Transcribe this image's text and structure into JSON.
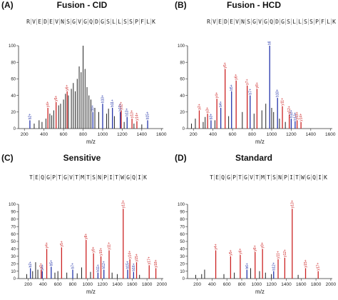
{
  "panels": [
    {
      "letter": "(A)",
      "title": "Fusion - CID",
      "sequence": [
        "R",
        "V",
        "E",
        "D",
        "E",
        "V",
        "N",
        "S",
        "G",
        "V",
        "G",
        "Q",
        "D",
        "G",
        "S",
        "L",
        "L",
        "S",
        "S",
        "P",
        "F",
        "L",
        "K"
      ],
      "chart_data": {
        "type": "bar",
        "xlabel": "m/z",
        "ylabel": "",
        "xlim": [
          140,
          1620
        ],
        "ylim": [
          0,
          100
        ],
        "xticks": [
          200,
          400,
          600,
          800,
          1000,
          1200,
          1400,
          1600
        ],
        "yticks": [
          0,
          20,
          40,
          60,
          80,
          100
        ],
        "y_ions": [
          {
            "label": "y4+",
            "mz": 440,
            "intensity": 25
          },
          {
            "label": "y5+",
            "mz": 524,
            "intensity": 32
          },
          {
            "label": "y6+",
            "mz": 637,
            "intensity": 45
          },
          {
            "label": "y12+",
            "mz": 1190,
            "intensity": 22
          },
          {
            "label": "y13+",
            "mz": 1300,
            "intensity": 12
          },
          {
            "label": "y14+",
            "mz": 1350,
            "intensity": 9
          }
        ],
        "b_ions": [
          {
            "label": "b2+",
            "mz": 256,
            "intensity": 10
          },
          {
            "label": "b9+",
            "mz": 900,
            "intensity": 20
          },
          {
            "label": "b10+",
            "mz": 1000,
            "intensity": 30
          },
          {
            "label": "b11+",
            "mz": 1100,
            "intensity": 25
          },
          {
            "label": "b12+",
            "mz": 1180,
            "intensity": 20
          },
          {
            "label": "b13+",
            "mz": 1250,
            "intensity": 14
          },
          {
            "label": "b15+",
            "mz": 1460,
            "intensity": 10
          }
        ],
        "other_peaks": [
          {
            "mz": 300,
            "intensity": 6
          },
          {
            "mz": 350,
            "intensity": 10
          },
          {
            "mz": 380,
            "intensity": 8
          },
          {
            "mz": 420,
            "intensity": 12
          },
          {
            "mz": 460,
            "intensity": 18
          },
          {
            "mz": 480,
            "intensity": 16
          },
          {
            "mz": 500,
            "intensity": 22
          },
          {
            "mz": 550,
            "intensity": 28
          },
          {
            "mz": 570,
            "intensity": 30
          },
          {
            "mz": 600,
            "intensity": 35
          },
          {
            "mz": 620,
            "intensity": 42
          },
          {
            "mz": 650,
            "intensity": 40
          },
          {
            "mz": 680,
            "intensity": 48
          },
          {
            "mz": 700,
            "intensity": 55
          },
          {
            "mz": 720,
            "intensity": 45
          },
          {
            "mz": 740,
            "intensity": 60
          },
          {
            "mz": 760,
            "intensity": 75
          },
          {
            "mz": 780,
            "intensity": 68
          },
          {
            "mz": 800,
            "intensity": 100
          },
          {
            "mz": 820,
            "intensity": 72
          },
          {
            "mz": 840,
            "intensity": 50
          },
          {
            "mz": 860,
            "intensity": 40
          },
          {
            "mz": 880,
            "intensity": 35
          },
          {
            "mz": 920,
            "intensity": 25
          },
          {
            "mz": 960,
            "intensity": 20
          },
          {
            "mz": 1040,
            "intensity": 18
          },
          {
            "mz": 1060,
            "intensity": 24
          },
          {
            "mz": 1120,
            "intensity": 15
          },
          {
            "mz": 1220,
            "intensity": 8
          },
          {
            "mz": 1320,
            "intensity": 6
          },
          {
            "mz": 1400,
            "intensity": 5
          }
        ]
      }
    },
    {
      "letter": "(B)",
      "title": "Fusion - HCD",
      "sequence": [
        "R",
        "V",
        "E",
        "D",
        "E",
        "V",
        "N",
        "S",
        "G",
        "V",
        "G",
        "Q",
        "D",
        "G",
        "S",
        "L",
        "L",
        "S",
        "S",
        "P",
        "F",
        "L",
        "K"
      ],
      "chart_data": {
        "type": "bar",
        "xlabel": "m/z",
        "ylabel": "",
        "xlim": [
          140,
          1620
        ],
        "ylim": [
          0,
          100
        ],
        "xticks": [
          200,
          400,
          600,
          800,
          1000,
          1200,
          1400,
          1600
        ],
        "yticks": [
          0,
          20,
          40,
          60,
          80,
          100
        ],
        "y_ions": [
          {
            "label": "y2+",
            "mz": 260,
            "intensity": 22
          },
          {
            "label": "y3+",
            "mz": 345,
            "intensity": 18
          },
          {
            "label": "y4+",
            "mz": 440,
            "intensity": 36
          },
          {
            "label": "y5+",
            "mz": 524,
            "intensity": 72
          },
          {
            "label": "y6+",
            "mz": 637,
            "intensity": 58
          },
          {
            "label": "y7+",
            "mz": 750,
            "intensity": 52
          },
          {
            "label": "y8+",
            "mz": 850,
            "intensity": 48
          },
          {
            "label": "y11+",
            "mz": 1110,
            "intensity": 27
          },
          {
            "label": "y12+",
            "mz": 1180,
            "intensity": 17
          },
          {
            "label": "y13+",
            "mz": 1260,
            "intensity": 10
          },
          {
            "label": "y14+",
            "mz": 1300,
            "intensity": 8
          }
        ],
        "b_ions": [
          {
            "label": "b3+",
            "mz": 380,
            "intensity": 10
          },
          {
            "label": "b4+",
            "mz": 480,
            "intensity": 25
          },
          {
            "label": "b5+",
            "mz": 590,
            "intensity": 45
          },
          {
            "label": "b7+",
            "mz": 780,
            "intensity": 40
          },
          {
            "label": "b9+",
            "mz": 980,
            "intensity": 100
          },
          {
            "label": "b10+",
            "mz": 1060,
            "intensity": 37
          },
          {
            "label": "b12+",
            "mz": 1200,
            "intensity": 12
          },
          {
            "label": "b13+",
            "mz": 1240,
            "intensity": 9
          }
        ],
        "other_peaks": [
          {
            "mz": 180,
            "intensity": 6
          },
          {
            "mz": 220,
            "intensity": 12
          },
          {
            "mz": 300,
            "intensity": 8
          },
          {
            "mz": 320,
            "intensity": 14
          },
          {
            "mz": 420,
            "intensity": 10
          },
          {
            "mz": 560,
            "intensity": 15
          },
          {
            "mz": 700,
            "intensity": 20
          },
          {
            "mz": 820,
            "intensity": 18
          },
          {
            "mz": 900,
            "intensity": 22
          },
          {
            "mz": 940,
            "intensity": 30
          },
          {
            "mz": 1000,
            "intensity": 25
          },
          {
            "mz": 1020,
            "intensity": 20
          },
          {
            "mz": 1080,
            "intensity": 12
          },
          {
            "mz": 1140,
            "intensity": 8
          }
        ]
      }
    },
    {
      "letter": "(C)",
      "title": "Sensitive",
      "sequence": [
        "T",
        "E",
        "Q",
        "G",
        "P",
        "T",
        "G",
        "V",
        "T",
        "M",
        "T",
        "S",
        "N",
        "P",
        "I",
        "T",
        "W",
        "G",
        "Q",
        "I",
        "K"
      ],
      "chart_data": {
        "type": "bar",
        "xlabel": "m/z",
        "ylabel": "",
        "xlim": [
          70,
          2020
        ],
        "ylim": [
          0,
          100
        ],
        "xticks": [
          200,
          400,
          600,
          800,
          1000,
          1200,
          1400,
          1600,
          1800,
          2000
        ],
        "yticks": [
          0,
          10,
          20,
          30,
          40,
          50,
          60,
          70,
          80,
          90,
          100
        ],
        "y_ions": [
          {
            "label": "y3+",
            "mz": 375,
            "intensity": 12
          },
          {
            "label": "y4+",
            "mz": 450,
            "intensity": 40
          },
          {
            "label": "y5+",
            "mz": 650,
            "intensity": 42
          },
          {
            "label": "y8+",
            "mz": 980,
            "intensity": 52
          },
          {
            "label": "y9+",
            "mz": 1080,
            "intensity": 34
          },
          {
            "label": "y10+",
            "mz": 1180,
            "intensity": 30
          },
          {
            "label": "y11+",
            "mz": 1290,
            "intensity": 38
          },
          {
            "label": "y13+",
            "mz": 1480,
            "intensity": 94
          },
          {
            "label": "y14+",
            "mz": 1570,
            "intensity": 26
          },
          {
            "label": "y15+",
            "mz": 1660,
            "intensity": 22
          },
          {
            "label": "y17+",
            "mz": 1830,
            "intensity": 18
          },
          {
            "label": "y18+",
            "mz": 1920,
            "intensity": 14
          }
        ],
        "b_ions": [
          {
            "label": "b2+",
            "mz": 230,
            "intensity": 14
          },
          {
            "label": "b4+",
            "mz": 390,
            "intensity": 10
          },
          {
            "label": "b5+",
            "mz": 510,
            "intensity": 16
          },
          {
            "label": "b7+",
            "mz": 800,
            "intensity": 12
          },
          {
            "label": "b11+",
            "mz": 1140,
            "intensity": 8
          },
          {
            "label": "b12+",
            "mz": 1220,
            "intensity": 12
          },
          {
            "label": "b15+",
            "mz": 1540,
            "intensity": 12
          },
          {
            "label": "b16+",
            "mz": 1620,
            "intensity": 9
          }
        ],
        "other_peaks": [
          {
            "mz": 180,
            "intensity": 6
          },
          {
            "mz": 260,
            "intensity": 10
          },
          {
            "mz": 300,
            "intensity": 22
          },
          {
            "mz": 330,
            "intensity": 12
          },
          {
            "mz": 560,
            "intensity": 8
          },
          {
            "mz": 600,
            "intensity": 10
          },
          {
            "mz": 720,
            "intensity": 8
          },
          {
            "mz": 860,
            "intensity": 7
          },
          {
            "mz": 920,
            "intensity": 15
          },
          {
            "mz": 1040,
            "intensity": 9
          },
          {
            "mz": 1330,
            "intensity": 8
          },
          {
            "mz": 1400,
            "intensity": 6
          },
          {
            "mz": 1700,
            "intensity": 5
          }
        ]
      }
    },
    {
      "letter": "(D)",
      "title": "Standard",
      "sequence": [
        "T",
        "E",
        "Q",
        "G",
        "P",
        "T",
        "G",
        "V",
        "T",
        "M",
        "T",
        "S",
        "N",
        "P",
        "I",
        "T",
        "W",
        "G",
        "Q",
        "I",
        "K"
      ],
      "chart_data": {
        "type": "bar",
        "xlabel": "m/z",
        "ylabel": "",
        "xlim": [
          70,
          2020
        ],
        "ylim": [
          0,
          100
        ],
        "xticks": [
          200,
          400,
          600,
          800,
          1000,
          1200,
          1400,
          1600,
          1800,
          2000
        ],
        "yticks": [
          0,
          10,
          20,
          30,
          40,
          50,
          60,
          70,
          80,
          90,
          100
        ],
        "y_ions": [
          {
            "label": "y4+",
            "mz": 450,
            "intensity": 38
          },
          {
            "label": "y5+",
            "mz": 650,
            "intensity": 30
          },
          {
            "label": "y6+",
            "mz": 780,
            "intensity": 32
          },
          {
            "label": "y8+",
            "mz": 980,
            "intensity": 36
          },
          {
            "label": "y9+",
            "mz": 1080,
            "intensity": 40
          },
          {
            "label": "y11+",
            "mz": 1290,
            "intensity": 26
          },
          {
            "label": "y12+",
            "mz": 1380,
            "intensity": 28
          },
          {
            "label": "y13+",
            "mz": 1480,
            "intensity": 94
          },
          {
            "label": "y15+",
            "mz": 1660,
            "intensity": 14
          },
          {
            "label": "y17+",
            "mz": 1830,
            "intensity": 10
          }
        ],
        "b_ions": [
          {
            "label": "b6+",
            "mz": 870,
            "intensity": 12
          },
          {
            "label": "b12+",
            "mz": 1230,
            "intensity": 10
          }
        ],
        "other_peaks": [
          {
            "mz": 180,
            "intensity": 5
          },
          {
            "mz": 260,
            "intensity": 6
          },
          {
            "mz": 300,
            "intensity": 12
          },
          {
            "mz": 560,
            "intensity": 6
          },
          {
            "mz": 700,
            "intensity": 8
          },
          {
            "mz": 920,
            "intensity": 14
          },
          {
            "mz": 1040,
            "intensity": 10
          },
          {
            "mz": 1120,
            "intensity": 8
          },
          {
            "mz": 1200,
            "intensity": 6
          },
          {
            "mz": 1560,
            "intensity": 5
          }
        ]
      }
    }
  ],
  "colors": {
    "y_ion": "#cc2222",
    "b_ion": "#2233aa",
    "other": "#222222",
    "axis": "#333333"
  }
}
